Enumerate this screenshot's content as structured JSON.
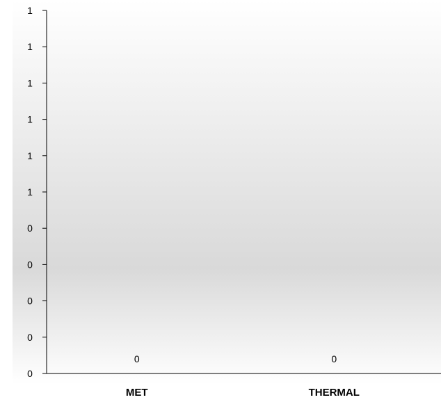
{
  "chart_data": {
    "type": "bar",
    "categories": [
      "MET",
      "THERMAL"
    ],
    "values": [
      0,
      0
    ],
    "data_labels": [
      "0",
      "0"
    ],
    "ytick_labels": [
      "0",
      "0",
      "0",
      "0",
      "0",
      "1",
      "1",
      "1",
      "1",
      "1",
      "1"
    ],
    "ylim": [
      0,
      1
    ],
    "title": "",
    "xlabel": "",
    "ylabel": "",
    "grid": false,
    "legend": "none",
    "plot_background": "vertical gradient white to light gray",
    "colors": {
      "plot_bg_top": "#ffffff",
      "plot_bg_mid": "#d9d9d9",
      "plot_bg_bottom": "#ffffff",
      "axis": "#000000",
      "text": "#000000"
    }
  }
}
